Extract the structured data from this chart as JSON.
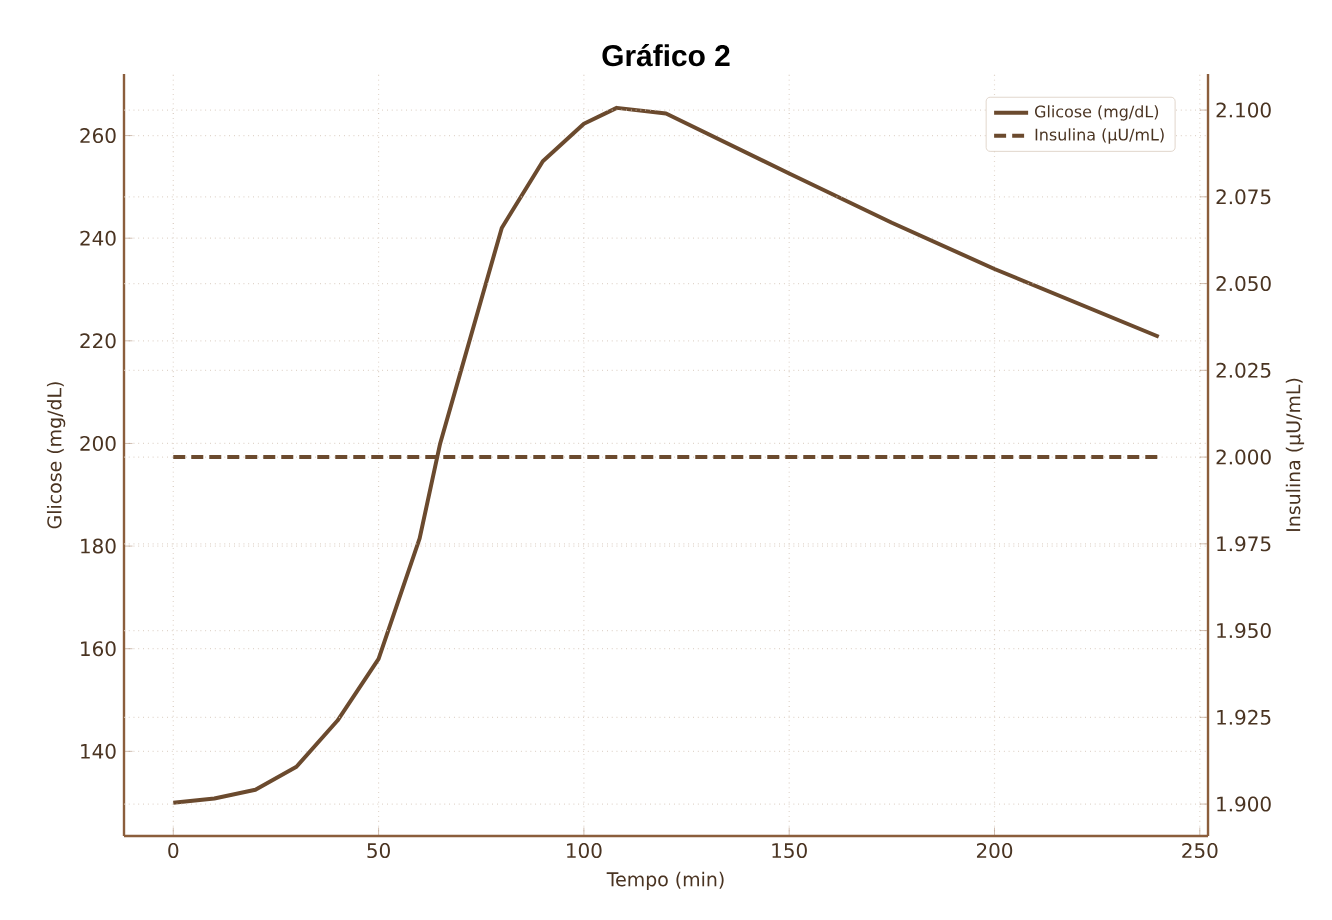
{
  "chart_data": {
    "type": "line",
    "title": "Gráfico 2",
    "xlabel": "Tempo (min)",
    "ylabel": "Glicose (mg/dL)",
    "y2label": "Insulina (µU/mL)",
    "xlim": [
      -12,
      252
    ],
    "xticks": [
      0,
      50,
      100,
      150,
      200,
      250
    ],
    "ylim": [
      123.5,
      272
    ],
    "yticks": [
      140,
      160,
      180,
      200,
      220,
      240,
      260
    ],
    "y2lim": [
      1.8908,
      2.1104
    ],
    "y2ticks": [
      {
        "value": 1.9,
        "label": "1.900"
      },
      {
        "value": 1.925,
        "label": "1.925"
      },
      {
        "value": 1.95,
        "label": "1.950"
      },
      {
        "value": 1.975,
        "label": "1.975"
      },
      {
        "value": 2.0,
        "label": "2.000"
      },
      {
        "value": 2.025,
        "label": "2.025"
      },
      {
        "value": 2.05,
        "label": "2.050"
      },
      {
        "value": 2.075,
        "label": "2.075"
      },
      {
        "value": 2.1,
        "label": "2.100"
      }
    ],
    "grid": true,
    "legend": "top right",
    "series": [
      {
        "name": "Glicose (mg/dL)",
        "color": "#6b4a2e",
        "line_style": "solid",
        "x": [
          0,
          10,
          20,
          30,
          40,
          50,
          60,
          65,
          70,
          75,
          80,
          90,
          100,
          108,
          120,
          150,
          175,
          200,
          240
        ],
        "values": [
          130,
          130.8,
          132.5,
          137,
          146,
          158,
          181.5,
          200,
          214,
          228,
          242,
          255,
          262.3,
          265.4,
          264.3,
          252.6,
          243,
          234,
          220.8
        ]
      },
      {
        "name": "Insulina (µU/mL)",
        "color": "#6b4a2e",
        "line_style": "dashed",
        "axis": "y2",
        "x": [
          0,
          240
        ],
        "values": [
          2.0,
          2.0
        ]
      }
    ]
  }
}
